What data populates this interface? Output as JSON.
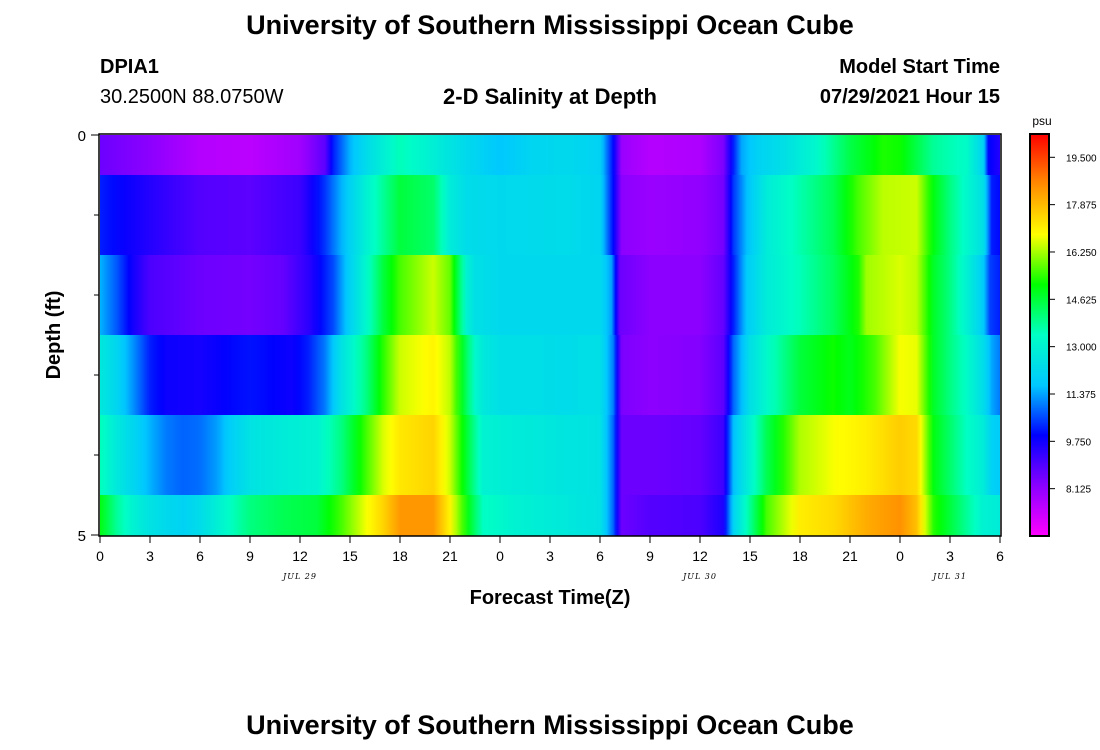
{
  "header": {
    "title": "University of Southern Mississippi Ocean Cube",
    "station": "DPIA1",
    "coordinates": "30.2500N  88.0750W",
    "subtitle": "2-D Salinity at Depth",
    "model_start_label": "Model Start Time",
    "model_start_value": "07/29/2021 Hour 15"
  },
  "footer": {
    "title": "University of Southern Mississippi Ocean Cube"
  },
  "chart_data": {
    "type": "heatmap",
    "title": "2-D Salinity at Depth",
    "xlabel": "Forecast Time(Z)",
    "ylabel": "Depth (ft)",
    "x_tick_labels": [
      "0",
      "3",
      "6",
      "9",
      "12",
      "15",
      "18",
      "21",
      "0",
      "3",
      "6",
      "9",
      "12",
      "15",
      "18",
      "21",
      "0",
      "3",
      "6"
    ],
    "date_labels": [
      {
        "label": "JUL 29",
        "at_hour": 12
      },
      {
        "label": "JUL 30",
        "at_hour": 36
      },
      {
        "label": "JUL 31",
        "at_hour": 51
      }
    ],
    "x_range_hours": [
      0,
      54
    ],
    "y_range": [
      0,
      5
    ],
    "y_tick_labels": [
      "0",
      "5"
    ],
    "colorbar": {
      "unit": "psu",
      "min": 6.5,
      "max": 20.3,
      "tick_labels": [
        "19.500",
        "17.875",
        "16.250",
        "14.625",
        "13.000",
        "11.375",
        "9.750",
        "8.125"
      ],
      "colors": [
        "#ff00ff",
        "#8a00ff",
        "#0000ff",
        "#00c8ff",
        "#00ffc4",
        "#00ff00",
        "#ffff00",
        "#ff8c00",
        "#ff0000"
      ]
    },
    "layers": [
      {
        "depth_range": [
          0.0,
          0.5
        ],
        "keys": [
          [
            0,
            8.6
          ],
          [
            3,
            8.2
          ],
          [
            6,
            7.6
          ],
          [
            9,
            7.5
          ],
          [
            12,
            7.9
          ],
          [
            13.5,
            8.8
          ],
          [
            14,
            10.2
          ],
          [
            15,
            11.5
          ],
          [
            16,
            12.3
          ],
          [
            18,
            13.5
          ],
          [
            20,
            12.9
          ],
          [
            22,
            12.2
          ],
          [
            24,
            11.7
          ],
          [
            26,
            12.1
          ],
          [
            28,
            12.2
          ],
          [
            30,
            12.0
          ],
          [
            30.8,
            10.0
          ],
          [
            31.3,
            8.0
          ],
          [
            33,
            7.6
          ],
          [
            36,
            7.7
          ],
          [
            37.4,
            8.4
          ],
          [
            38,
            10.2
          ],
          [
            38.5,
            11.4
          ],
          [
            39.5,
            12.0
          ],
          [
            41,
            12.4
          ],
          [
            43,
            13.2
          ],
          [
            45,
            14.5
          ],
          [
            47,
            15.3
          ],
          [
            48,
            15.2
          ],
          [
            49,
            14.5
          ],
          [
            50,
            13.8
          ],
          [
            52,
            13.3
          ],
          [
            53,
            12.0
          ],
          [
            53.3,
            10.0
          ],
          [
            54,
            9.5
          ]
        ]
      },
      {
        "depth_range": [
          0.5,
          1.5
        ],
        "keys": [
          [
            0,
            10.2
          ],
          [
            3,
            9.5
          ],
          [
            6,
            8.9
          ],
          [
            9,
            8.8
          ],
          [
            12,
            9.2
          ],
          [
            13.5,
            10.4
          ],
          [
            14.5,
            11.5
          ],
          [
            16,
            13.0
          ],
          [
            18,
            14.6
          ],
          [
            20,
            14.2
          ],
          [
            21,
            12.8
          ],
          [
            22,
            12.3
          ],
          [
            24,
            12.2
          ],
          [
            28,
            12.3
          ],
          [
            30,
            12.1
          ],
          [
            30.8,
            10.0
          ],
          [
            31.3,
            8.2
          ],
          [
            33,
            8.0
          ],
          [
            36,
            8.1
          ],
          [
            37.4,
            8.5
          ],
          [
            38,
            10.4
          ],
          [
            38.8,
            11.6
          ],
          [
            40,
            12.8
          ],
          [
            42,
            13.6
          ],
          [
            44,
            14.4
          ],
          [
            45.5,
            15.6
          ],
          [
            47,
            16.4
          ],
          [
            49,
            16.5
          ],
          [
            50,
            15.0
          ],
          [
            51,
            14.0
          ],
          [
            52,
            13.2
          ],
          [
            53,
            12.4
          ],
          [
            53.5,
            10.2
          ],
          [
            54,
            10.0
          ]
        ]
      },
      {
        "depth_range": [
          1.5,
          2.5
        ],
        "keys": [
          [
            0,
            11.5
          ],
          [
            1,
            10.7
          ],
          [
            2,
            9.7
          ],
          [
            3,
            9.0
          ],
          [
            6,
            8.6
          ],
          [
            9,
            8.5
          ],
          [
            11,
            8.7
          ],
          [
            12.5,
            9.4
          ],
          [
            14,
            10.6
          ],
          [
            15,
            12.0
          ],
          [
            16,
            13.2
          ],
          [
            17,
            14.6
          ],
          [
            18,
            15.6
          ],
          [
            20,
            16.5
          ],
          [
            21,
            15.8
          ],
          [
            22,
            13.0
          ],
          [
            22.5,
            12.4
          ],
          [
            24,
            12.2
          ],
          [
            28,
            12.2
          ],
          [
            30,
            12.2
          ],
          [
            30.7,
            11.3
          ],
          [
            31.2,
            8.6
          ],
          [
            33,
            8.2
          ],
          [
            36,
            8.2
          ],
          [
            37.4,
            8.7
          ],
          [
            38,
            10.2
          ],
          [
            38.8,
            11.8
          ],
          [
            40,
            12.8
          ],
          [
            42,
            13.5
          ],
          [
            44,
            14.3
          ],
          [
            45.5,
            15.3
          ],
          [
            46,
            16.2
          ],
          [
            48,
            16.6
          ],
          [
            49,
            16.4
          ],
          [
            50,
            14.8
          ],
          [
            51,
            14.0
          ],
          [
            52,
            13.0
          ],
          [
            53,
            11.8
          ],
          [
            53.4,
            10.5
          ],
          [
            54,
            10.2
          ]
        ]
      },
      {
        "depth_range": [
          2.5,
          3.5
        ],
        "keys": [
          [
            0,
            12.7
          ],
          [
            1,
            12.1
          ],
          [
            2,
            11.2
          ],
          [
            3,
            10.2
          ],
          [
            4,
            9.8
          ],
          [
            6,
            9.7
          ],
          [
            8,
            10.0
          ],
          [
            9,
            10.1
          ],
          [
            10,
            10.0
          ],
          [
            11.5,
            9.8
          ],
          [
            12.5,
            10.2
          ],
          [
            13.5,
            11.0
          ],
          [
            14.5,
            12.5
          ],
          [
            16,
            14.0
          ],
          [
            17,
            15.4
          ],
          [
            18,
            16.5
          ],
          [
            20,
            17.0
          ],
          [
            21,
            16.4
          ],
          [
            22.5,
            13.2
          ],
          [
            23,
            12.7
          ],
          [
            24,
            12.4
          ],
          [
            28,
            12.3
          ],
          [
            30,
            12.4
          ],
          [
            30.8,
            11.0
          ],
          [
            31.3,
            8.4
          ],
          [
            33,
            8.2
          ],
          [
            36,
            8.3
          ],
          [
            37.4,
            8.8
          ],
          [
            38,
            10.8
          ],
          [
            39,
            12.4
          ],
          [
            40,
            13.2
          ],
          [
            42,
            14.6
          ],
          [
            44,
            15.2
          ],
          [
            45,
            14.9
          ],
          [
            46.5,
            15.6
          ],
          [
            48,
            16.8
          ],
          [
            49,
            16.7
          ],
          [
            50,
            14.8
          ],
          [
            51,
            14.0
          ],
          [
            52,
            13.3
          ],
          [
            53,
            12.3
          ],
          [
            53.5,
            11.4
          ],
          [
            54,
            11.0
          ]
        ]
      },
      {
        "depth_range": [
          3.5,
          4.5
        ],
        "keys": [
          [
            0,
            13.5
          ],
          [
            1,
            12.7
          ],
          [
            2,
            12.1
          ],
          [
            3,
            11.5
          ],
          [
            4,
            11.0
          ],
          [
            5,
            10.8
          ],
          [
            6,
            10.9
          ],
          [
            7,
            11.3
          ],
          [
            8,
            12.0
          ],
          [
            9,
            12.5
          ],
          [
            11,
            12.8
          ],
          [
            13,
            13.0
          ],
          [
            14.5,
            14.0
          ],
          [
            16,
            15.6
          ],
          [
            17,
            16.6
          ],
          [
            18,
            17.2
          ],
          [
            20,
            17.5
          ],
          [
            21,
            16.5
          ],
          [
            22.5,
            13.8
          ],
          [
            23,
            13.0
          ],
          [
            25,
            12.8
          ],
          [
            28,
            12.6
          ],
          [
            30,
            12.5
          ],
          [
            30.8,
            10.8
          ],
          [
            31.3,
            8.6
          ],
          [
            33,
            8.6
          ],
          [
            36,
            8.7
          ],
          [
            37.4,
            9.2
          ],
          [
            38,
            11.6
          ],
          [
            39,
            13.0
          ],
          [
            40,
            14.4
          ],
          [
            42,
            16.3
          ],
          [
            44,
            16.8
          ],
          [
            46,
            17.1
          ],
          [
            48,
            17.6
          ],
          [
            49,
            17.4
          ],
          [
            50,
            15.0
          ],
          [
            51,
            14.2
          ],
          [
            52,
            13.4
          ],
          [
            53,
            12.8
          ],
          [
            53.5,
            12.0
          ],
          [
            54,
            11.8
          ]
        ]
      },
      {
        "depth_range": [
          4.5,
          5.0
        ],
        "keys": [
          [
            0,
            15.0
          ],
          [
            1,
            13.8
          ],
          [
            2,
            13.0
          ],
          [
            3,
            12.5
          ],
          [
            4,
            12.2
          ],
          [
            5,
            12.0
          ],
          [
            6,
            12.3
          ],
          [
            7,
            12.9
          ],
          [
            8,
            13.5
          ],
          [
            9,
            14.0
          ],
          [
            11,
            14.4
          ],
          [
            13,
            14.6
          ],
          [
            14.5,
            15.6
          ],
          [
            16,
            16.8
          ],
          [
            17,
            17.5
          ],
          [
            18,
            18.4
          ],
          [
            20,
            18.4
          ],
          [
            21,
            17.0
          ],
          [
            22.5,
            14.2
          ],
          [
            23,
            13.4
          ],
          [
            25,
            13.0
          ],
          [
            28,
            12.7
          ],
          [
            30,
            12.5
          ],
          [
            30.8,
            10.8
          ],
          [
            31.3,
            8.6
          ],
          [
            33,
            8.9
          ],
          [
            36,
            9.0
          ],
          [
            37.4,
            9.6
          ],
          [
            38,
            12.0
          ],
          [
            39,
            13.8
          ],
          [
            40,
            15.6
          ],
          [
            42,
            17.1
          ],
          [
            44,
            17.4
          ],
          [
            46,
            18.1
          ],
          [
            48,
            18.5
          ],
          [
            49,
            17.8
          ],
          [
            50,
            15.4
          ],
          [
            51,
            14.6
          ],
          [
            52,
            13.8
          ],
          [
            53,
            13.0
          ],
          [
            54,
            12.8
          ]
        ]
      }
    ]
  }
}
